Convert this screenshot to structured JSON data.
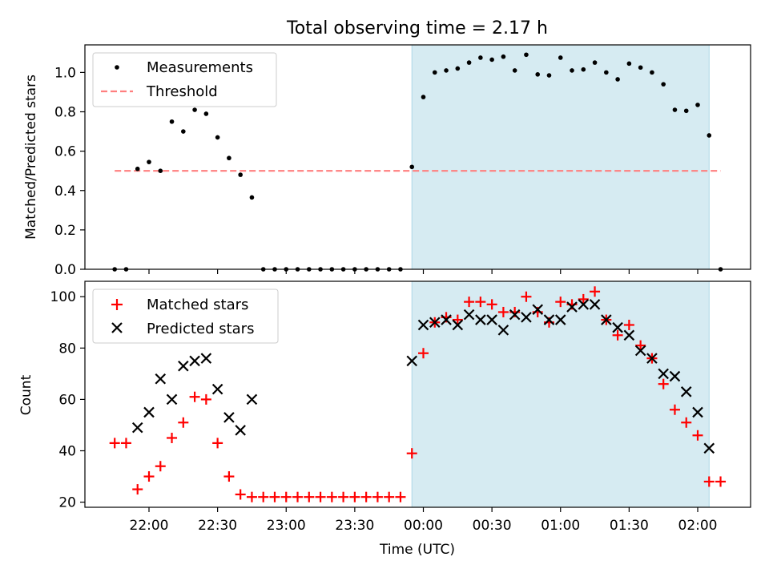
{
  "title": "Total observing time = 2.17 h",
  "chart_data": [
    {
      "type": "scatter",
      "panel": "top",
      "ylabel": "Matched/Predicted stars",
      "xlabel": "",
      "ylim": [
        0,
        1.14
      ],
      "yticks": [
        "0.0",
        "0.2",
        "0.4",
        "0.6",
        "0.8",
        "1.0"
      ],
      "legend_placement": "upper-left",
      "grid": false,
      "shaded_region": {
        "from": "23:55",
        "to": "02:05",
        "color": "#add8e6"
      },
      "threshold": {
        "name": "Threshold",
        "value": 0.5,
        "from": "21:45",
        "to": "02:10",
        "color": "#ff7f7f",
        "style": "dashed"
      },
      "series": [
        {
          "name": "Measurements",
          "marker": "dot",
          "color": "#000000",
          "points": [
            [
              "21:45",
              0
            ],
            [
              "21:50",
              0
            ],
            [
              "21:55",
              0.51
            ],
            [
              "22:00",
              0.545
            ],
            [
              "22:05",
              0.5
            ],
            [
              "22:10",
              0.75
            ],
            [
              "22:15",
              0.7
            ],
            [
              "22:20",
              0.81
            ],
            [
              "22:25",
              0.79
            ],
            [
              "22:30",
              0.67
            ],
            [
              "22:35",
              0.565
            ],
            [
              "22:40",
              0.48
            ],
            [
              "22:45",
              0.365
            ],
            [
              "22:50",
              0
            ],
            [
              "22:55",
              0
            ],
            [
              "23:00",
              0
            ],
            [
              "23:05",
              0
            ],
            [
              "23:10",
              0
            ],
            [
              "23:15",
              0
            ],
            [
              "23:20",
              0
            ],
            [
              "23:25",
              0
            ],
            [
              "23:30",
              0
            ],
            [
              "23:35",
              0
            ],
            [
              "23:40",
              0
            ],
            [
              "23:45",
              0
            ],
            [
              "23:50",
              0
            ],
            [
              "23:55",
              0.52
            ],
            [
              "00:00",
              0.875
            ],
            [
              "00:05",
              1.0
            ],
            [
              "00:10",
              1.01
            ],
            [
              "00:15",
              1.02
            ],
            [
              "00:20",
              1.05
            ],
            [
              "00:25",
              1.075
            ],
            [
              "00:30",
              1.065
            ],
            [
              "00:35",
              1.08
            ],
            [
              "00:40",
              1.01
            ],
            [
              "00:45",
              1.09
            ],
            [
              "00:50",
              0.99
            ],
            [
              "00:55",
              0.985
            ],
            [
              "01:00",
              1.075
            ],
            [
              "01:05",
              1.01
            ],
            [
              "01:10",
              1.015
            ],
            [
              "01:15",
              1.05
            ],
            [
              "01:20",
              1.0
            ],
            [
              "01:25",
              0.965
            ],
            [
              "01:30",
              1.045
            ],
            [
              "01:35",
              1.025
            ],
            [
              "01:40",
              1.0
            ],
            [
              "01:45",
              0.94
            ],
            [
              "01:50",
              0.81
            ],
            [
              "01:55",
              0.805
            ],
            [
              "02:00",
              0.835
            ],
            [
              "02:05",
              0.68
            ],
            [
              "02:10",
              0
            ]
          ]
        }
      ]
    },
    {
      "type": "scatter",
      "panel": "bottom",
      "xlabel": "Time (UTC)",
      "ylabel": "Count",
      "ylim": [
        18,
        106
      ],
      "yticks": [
        "20",
        "40",
        "60",
        "80",
        "100"
      ],
      "xticks": [
        "22:00",
        "22:30",
        "23:00",
        "23:30",
        "00:00",
        "00:30",
        "01:00",
        "01:30",
        "02:00"
      ],
      "legend_placement": "upper-left",
      "grid": false,
      "shaded_region": {
        "from": "23:55",
        "to": "02:05",
        "color": "#add8e6"
      },
      "series": [
        {
          "name": "Matched stars",
          "marker": "plus",
          "color": "#ff0000",
          "points": [
            [
              "21:45",
              43
            ],
            [
              "21:50",
              43
            ],
            [
              "21:55",
              25
            ],
            [
              "22:00",
              30
            ],
            [
              "22:05",
              34
            ],
            [
              "22:10",
              45
            ],
            [
              "22:15",
              51
            ],
            [
              "22:20",
              61
            ],
            [
              "22:25",
              60
            ],
            [
              "22:30",
              43
            ],
            [
              "22:35",
              30
            ],
            [
              "22:40",
              23
            ],
            [
              "22:45",
              22
            ],
            [
              "22:50",
              22
            ],
            [
              "22:55",
              22
            ],
            [
              "23:00",
              22
            ],
            [
              "23:05",
              22
            ],
            [
              "23:10",
              22
            ],
            [
              "23:15",
              22
            ],
            [
              "23:20",
              22
            ],
            [
              "23:25",
              22
            ],
            [
              "23:30",
              22
            ],
            [
              "23:35",
              22
            ],
            [
              "23:40",
              22
            ],
            [
              "23:45",
              22
            ],
            [
              "23:50",
              22
            ],
            [
              "23:55",
              39
            ],
            [
              "00:00",
              78
            ],
            [
              "00:05",
              90
            ],
            [
              "00:10",
              92
            ],
            [
              "00:15",
              91
            ],
            [
              "00:20",
              98
            ],
            [
              "00:25",
              98
            ],
            [
              "00:30",
              97
            ],
            [
              "00:35",
              94
            ],
            [
              "00:40",
              94
            ],
            [
              "00:45",
              100
            ],
            [
              "00:50",
              94
            ],
            [
              "00:55",
              90
            ],
            [
              "01:00",
              98
            ],
            [
              "01:05",
              97
            ],
            [
              "01:10",
              99
            ],
            [
              "01:15",
              102
            ],
            [
              "01:20",
              91
            ],
            [
              "01:25",
              85
            ],
            [
              "01:30",
              89
            ],
            [
              "01:35",
              81
            ],
            [
              "01:40",
              76
            ],
            [
              "01:45",
              66
            ],
            [
              "01:50",
              56
            ],
            [
              "01:55",
              51
            ],
            [
              "02:00",
              46
            ],
            [
              "02:05",
              28
            ],
            [
              "02:10",
              28
            ]
          ]
        },
        {
          "name": "Predicted stars",
          "marker": "x",
          "color": "#000000",
          "points": [
            [
              "21:55",
              49
            ],
            [
              "22:00",
              55
            ],
            [
              "22:05",
              68
            ],
            [
              "22:10",
              60
            ],
            [
              "22:15",
              73
            ],
            [
              "22:20",
              75
            ],
            [
              "22:25",
              76
            ],
            [
              "22:30",
              64
            ],
            [
              "22:35",
              53
            ],
            [
              "22:40",
              48
            ],
            [
              "22:45",
              60
            ],
            [
              "23:55",
              75
            ],
            [
              "00:00",
              89
            ],
            [
              "00:05",
              90
            ],
            [
              "00:10",
              91
            ],
            [
              "00:15",
              89
            ],
            [
              "00:20",
              93
            ],
            [
              "00:25",
              91
            ],
            [
              "00:30",
              91
            ],
            [
              "00:35",
              87
            ],
            [
              "00:40",
              93
            ],
            [
              "00:45",
              92
            ],
            [
              "00:50",
              95
            ],
            [
              "00:55",
              91
            ],
            [
              "01:00",
              91
            ],
            [
              "01:05",
              96
            ],
            [
              "01:10",
              97
            ],
            [
              "01:15",
              97
            ],
            [
              "01:20",
              91
            ],
            [
              "01:25",
              88
            ],
            [
              "01:30",
              85
            ],
            [
              "01:35",
              79
            ],
            [
              "01:40",
              76
            ],
            [
              "01:45",
              70
            ],
            [
              "01:50",
              69
            ],
            [
              "01:55",
              63
            ],
            [
              "02:00",
              55
            ],
            [
              "02:05",
              41
            ]
          ]
        }
      ]
    }
  ]
}
